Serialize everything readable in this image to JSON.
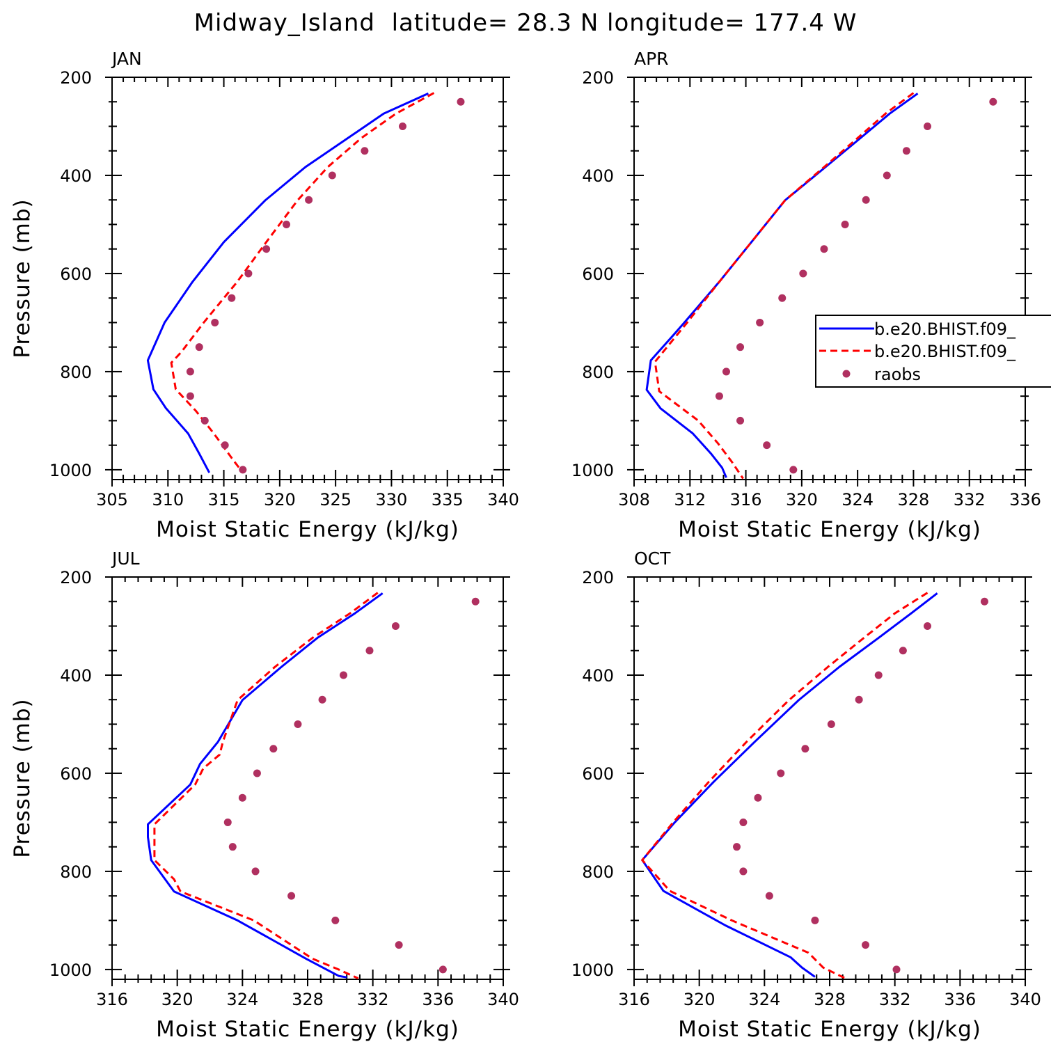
{
  "figure_title": "Midway_Island  latitude= 28.3 N longitude= 177.4 W",
  "legend": {
    "entries": [
      {
        "label": "b.e20.BHIST.f09_",
        "style": "solid",
        "color": "#0000ff"
      },
      {
        "label": "b.e20.BHIST.f09_",
        "style": "dashed",
        "color": "#ff0000"
      },
      {
        "label": "raobs",
        "style": "dot",
        "color": "#b03060"
      }
    ]
  },
  "chart_data": [
    {
      "type": "line",
      "panel": "JAN",
      "xlabel": "Moist Static Energy (kJ/kg)",
      "ylabel": "Pressure (mb)",
      "xlim": [
        305,
        340
      ],
      "ylim": [
        1020,
        200
      ],
      "xticks": [
        305,
        310,
        315,
        320,
        325,
        330,
        335,
        340
      ],
      "yticks": [
        200,
        400,
        600,
        800,
        1000
      ],
      "series": [
        {
          "color": "#0000ff",
          "style": "solid",
          "x": [
            333.3,
            329.3,
            326.1,
            322.3,
            318.7,
            315.0,
            312.2,
            309.7,
            308.2,
            308.7,
            309.8,
            311.8,
            312.8,
            313.7
          ],
          "y": [
            233,
            274,
            324,
            383,
            451,
            536,
            617,
            700,
            777,
            836,
            874,
            926,
            967,
            1006
          ]
        },
        {
          "color": "#ff0000",
          "style": "dashed",
          "x": [
            333.8,
            330.4,
            327.3,
            324.3,
            321.6,
            318.8,
            316.2,
            313.2,
            311.2,
            310.3,
            310.7,
            312.5,
            314.1,
            315.8,
            316.6
          ],
          "y": [
            232,
            274,
            324,
            383,
            451,
            536,
            617,
            700,
            760,
            782,
            836,
            880,
            926,
            979,
            1003
          ]
        },
        {
          "color": "#b03060",
          "style": "dot",
          "x": [
            336.2,
            331.0,
            327.6,
            324.7,
            322.6,
            320.6,
            318.8,
            317.2,
            315.7,
            314.2,
            312.8,
            312.0,
            312.0,
            313.3,
            315.1,
            316.7
          ],
          "y": [
            250,
            300,
            350,
            400,
            450,
            500,
            550,
            600,
            650,
            700,
            750,
            800,
            850,
            900,
            950,
            1000
          ]
        }
      ]
    },
    {
      "type": "line",
      "panel": "APR",
      "xlabel": "Moist Static Energy (kJ/kg)",
      "ylabel": "",
      "xlim": [
        308,
        336
      ],
      "ylim": [
        1020,
        200
      ],
      "xticks": [
        308,
        312,
        316,
        320,
        324,
        328,
        332,
        336
      ],
      "yticks": [
        200,
        400,
        600,
        800,
        1000
      ],
      "series": [
        {
          "color": "#0000ff",
          "style": "solid",
          "x": [
            328.3,
            326.3,
            324.2,
            321.7,
            318.8,
            316.4,
            314.1,
            311.6,
            310.8,
            309.2,
            308.9,
            309.9,
            312.2,
            313.5,
            314.3,
            314.6
          ],
          "y": [
            233,
            274,
            324,
            383,
            451,
            536,
            617,
            700,
            726,
            777,
            837,
            875,
            926,
            967,
            996,
            1016
          ]
        },
        {
          "color": "#ff0000",
          "style": "dashed",
          "x": [
            328.0,
            326.0,
            324.0,
            321.6,
            318.8,
            316.4,
            314.1,
            311.8,
            309.5,
            309.8,
            312.6,
            314.0,
            315.0,
            315.8
          ],
          "y": [
            232,
            274,
            324,
            383,
            451,
            536,
            617,
            700,
            780,
            840,
            900,
            946,
            984,
            1018
          ]
        },
        {
          "color": "#b03060",
          "style": "dot",
          "x": [
            333.7,
            329.0,
            327.5,
            326.1,
            324.6,
            323.1,
            321.6,
            320.1,
            318.6,
            317.0,
            315.6,
            314.6,
            314.1,
            315.6,
            317.5,
            319.4
          ],
          "y": [
            250,
            300,
            350,
            400,
            450,
            500,
            550,
            600,
            650,
            700,
            750,
            800,
            850,
            900,
            950,
            1000
          ]
        }
      ]
    },
    {
      "type": "line",
      "panel": "JUL",
      "xlabel": "Moist Static Energy (kJ/kg)",
      "ylabel": "Pressure (mb)",
      "xlim": [
        316,
        340
      ],
      "ylim": [
        1020,
        200
      ],
      "xticks": [
        316,
        320,
        324,
        328,
        332,
        336,
        340
      ],
      "yticks": [
        200,
        400,
        600,
        800,
        1000
      ],
      "series": [
        {
          "color": "#0000ff",
          "style": "solid",
          "x": [
            332.6,
            330.9,
            328.6,
            326.4,
            324.0,
            322.5,
            321.4,
            320.8,
            318.2,
            318.2,
            318.4,
            319.8,
            323.7,
            327.9,
            329.9,
            330.4
          ],
          "y": [
            233,
            274,
            324,
            383,
            451,
            536,
            581,
            623,
            704,
            730,
            777,
            841,
            900,
            978,
            1013,
            1016
          ]
        },
        {
          "color": "#ff0000",
          "style": "dashed",
          "x": [
            332.3,
            330.6,
            328.3,
            326.0,
            323.7,
            322.8,
            322.6,
            321.6,
            321.1,
            318.6,
            318.6,
            319.8,
            320.2,
            324.7,
            328.3,
            329.9,
            331.1
          ],
          "y": [
            232,
            274,
            324,
            383,
            451,
            536,
            562,
            590,
            623,
            704,
            777,
            816,
            841,
            900,
            978,
            1000,
            1018
          ]
        },
        {
          "color": "#b03060",
          "style": "dot",
          "x": [
            338.3,
            333.4,
            331.8,
            330.2,
            328.9,
            327.4,
            325.9,
            324.9,
            324.0,
            323.1,
            323.4,
            324.8,
            327.0,
            329.7,
            333.6,
            336.3
          ],
          "y": [
            250,
            300,
            350,
            400,
            450,
            500,
            550,
            600,
            650,
            700,
            750,
            800,
            850,
            900,
            950,
            1000
          ]
        }
      ]
    },
    {
      "type": "line",
      "panel": "OCT",
      "xlabel": "Moist Static Energy (kJ/kg)",
      "ylabel": "",
      "xlim": [
        316,
        340
      ],
      "ylim": [
        1020,
        200
      ],
      "xticks": [
        316,
        320,
        324,
        328,
        332,
        336,
        340
      ],
      "yticks": [
        200,
        400,
        600,
        800,
        1000
      ],
      "series": [
        {
          "color": "#0000ff",
          "style": "solid",
          "x": [
            334.6,
            333.0,
            331.0,
            328.6,
            326.1,
            323.4,
            320.9,
            318.5,
            316.5,
            317.8,
            321.6,
            325.6,
            326.3,
            327.1
          ],
          "y": [
            233,
            274,
            324,
            383,
            451,
            536,
            617,
            700,
            777,
            840,
            910,
            975,
            996,
            1015
          ]
        },
        {
          "color": "#ff0000",
          "style": "dashed",
          "x": [
            334.0,
            332.0,
            330.1,
            327.9,
            325.5,
            322.9,
            320.6,
            318.4,
            316.5,
            318.2,
            322.0,
            326.7,
            327.6,
            328.9
          ],
          "y": [
            232,
            274,
            324,
            383,
            451,
            536,
            617,
            700,
            777,
            840,
            900,
            966,
            996,
            1017
          ]
        },
        {
          "color": "#b03060",
          "style": "dot",
          "x": [
            337.5,
            334.0,
            332.5,
            331.0,
            329.8,
            328.1,
            326.5,
            325.0,
            323.6,
            322.7,
            322.3,
            322.7,
            324.3,
            327.1,
            330.2,
            332.1
          ],
          "y": [
            250,
            300,
            350,
            400,
            450,
            500,
            550,
            600,
            650,
            700,
            750,
            800,
            850,
            900,
            950,
            1000
          ]
        }
      ]
    }
  ]
}
